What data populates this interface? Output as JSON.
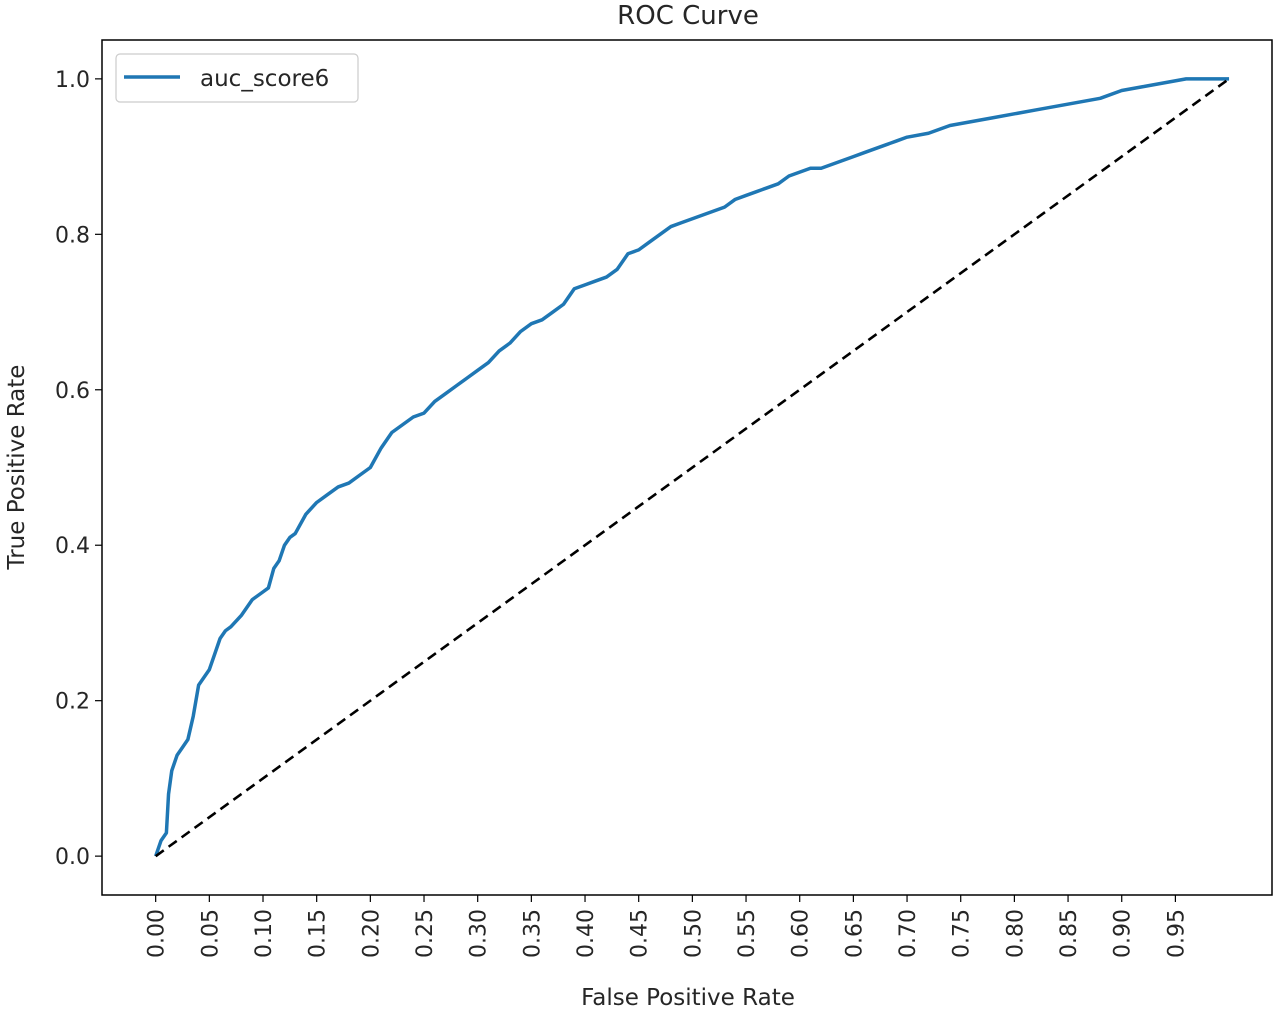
{
  "chart_data": {
    "type": "line",
    "title": "ROC Curve",
    "xlabel": "False Positive Rate",
    "ylabel": "True Positive Rate",
    "xlim": [
      -0.05,
      1.04
    ],
    "ylim": [
      -0.05,
      1.05
    ],
    "x_ticks": [
      "0.00",
      "0.05",
      "0.10",
      "0.15",
      "0.20",
      "0.25",
      "0.30",
      "0.35",
      "0.40",
      "0.45",
      "0.50",
      "0.55",
      "0.60",
      "0.65",
      "0.70",
      "0.75",
      "0.80",
      "0.85",
      "0.90",
      "0.95"
    ],
    "y_ticks": [
      "0.0",
      "0.2",
      "0.4",
      "0.6",
      "0.8",
      "1.0"
    ],
    "grid": false,
    "legend_position": "top-left",
    "series": [
      {
        "name": "auc_score6",
        "color": "#1f77b4",
        "style": "solid",
        "x": [
          0.0,
          0.005,
          0.01,
          0.012,
          0.015,
          0.02,
          0.025,
          0.03,
          0.035,
          0.04,
          0.045,
          0.05,
          0.055,
          0.06,
          0.065,
          0.07,
          0.08,
          0.09,
          0.095,
          0.1,
          0.105,
          0.11,
          0.115,
          0.12,
          0.125,
          0.13,
          0.14,
          0.15,
          0.16,
          0.17,
          0.18,
          0.19,
          0.2,
          0.21,
          0.22,
          0.23,
          0.24,
          0.25,
          0.26,
          0.27,
          0.28,
          0.29,
          0.3,
          0.31,
          0.32,
          0.33,
          0.34,
          0.35,
          0.36,
          0.37,
          0.38,
          0.39,
          0.4,
          0.41,
          0.42,
          0.43,
          0.44,
          0.45,
          0.46,
          0.47,
          0.48,
          0.49,
          0.5,
          0.51,
          0.52,
          0.53,
          0.54,
          0.55,
          0.56,
          0.57,
          0.58,
          0.59,
          0.6,
          0.61,
          0.62,
          0.63,
          0.64,
          0.65,
          0.66,
          0.67,
          0.68,
          0.69,
          0.7,
          0.72,
          0.74,
          0.76,
          0.78,
          0.8,
          0.82,
          0.84,
          0.86,
          0.88,
          0.9,
          0.92,
          0.94,
          0.96,
          0.98,
          1.0
        ],
        "y": [
          0.0,
          0.02,
          0.03,
          0.08,
          0.11,
          0.13,
          0.14,
          0.15,
          0.18,
          0.22,
          0.23,
          0.24,
          0.26,
          0.28,
          0.29,
          0.295,
          0.31,
          0.33,
          0.335,
          0.34,
          0.345,
          0.37,
          0.38,
          0.4,
          0.41,
          0.415,
          0.44,
          0.455,
          0.465,
          0.475,
          0.48,
          0.49,
          0.5,
          0.525,
          0.545,
          0.555,
          0.565,
          0.57,
          0.585,
          0.595,
          0.605,
          0.615,
          0.625,
          0.635,
          0.65,
          0.66,
          0.675,
          0.685,
          0.69,
          0.7,
          0.71,
          0.73,
          0.735,
          0.74,
          0.745,
          0.755,
          0.775,
          0.78,
          0.79,
          0.8,
          0.81,
          0.815,
          0.82,
          0.825,
          0.83,
          0.835,
          0.845,
          0.85,
          0.855,
          0.86,
          0.865,
          0.875,
          0.88,
          0.885,
          0.885,
          0.89,
          0.895,
          0.9,
          0.905,
          0.91,
          0.915,
          0.92,
          0.925,
          0.93,
          0.94,
          0.945,
          0.95,
          0.955,
          0.96,
          0.965,
          0.97,
          0.975,
          0.985,
          0.99,
          0.995,
          1.0,
          1.0,
          1.0
        ]
      },
      {
        "color": "#000000",
        "style": "dashed",
        "x": [
          0.0,
          1.0
        ],
        "y": [
          0.0,
          1.0
        ]
      }
    ]
  }
}
